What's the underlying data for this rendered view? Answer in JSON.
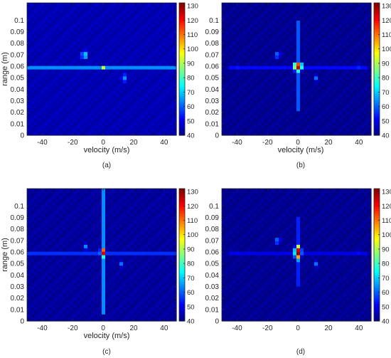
{
  "chart_data": [
    {
      "type": "heatmap",
      "panel_label": "(a)",
      "xlabel": "velocity (m/s)",
      "ylabel": "range (m)",
      "xlim": [
        -50,
        48
      ],
      "ylim": [
        0,
        0.115
      ],
      "xticks": [
        -40,
        -20,
        0,
        20,
        40
      ],
      "yticks": [
        0,
        0.01,
        0.02,
        0.03,
        0.04,
        0.05,
        0.06,
        0.07,
        0.08,
        0.09,
        0.1
      ],
      "colorbar": {
        "min": 40,
        "max": 132,
        "ticks": [
          40,
          50,
          60,
          70,
          80,
          90,
          100,
          110,
          120,
          130
        ]
      },
      "peaks": [
        {
          "x": 0,
          "y": 0.06,
          "value": 130,
          "sx": 2,
          "sy": 0.0012
        },
        {
          "x": -12,
          "y": 0.07,
          "value": 72,
          "sx": 3,
          "sy": 0.005
        },
        {
          "x": 14,
          "y": 0.05,
          "value": 65,
          "sx": 3,
          "sy": 0.005
        }
      ],
      "ridges": [
        {
          "orientation": "horizontal",
          "at": 0.06,
          "value": 82,
          "width": 0.002,
          "from": -50,
          "to": 48
        }
      ],
      "background": 43
    },
    {
      "type": "heatmap",
      "panel_label": "(b)",
      "xlabel": "velocity (m/s)",
      "ylabel": "",
      "xlim": [
        -50,
        48
      ],
      "ylim": [
        0,
        0.115
      ],
      "xticks": [
        -40,
        -20,
        0,
        20,
        40
      ],
      "yticks": [
        0,
        0.01,
        0.02,
        0.03,
        0.04,
        0.05,
        0.06,
        0.07,
        0.08,
        0.09,
        0.1
      ],
      "colorbar": {
        "min": 40,
        "max": 132,
        "ticks": [
          40,
          50,
          60,
          70,
          80,
          90,
          100,
          110,
          120,
          130
        ]
      },
      "peaks": [
        {
          "x": 0,
          "y": 0.06,
          "value": 130,
          "sx": 2.5,
          "sy": 0.004
        },
        {
          "x": -13,
          "y": 0.07,
          "value": 68,
          "sx": 2,
          "sy": 0.004
        },
        {
          "x": 12,
          "y": 0.05,
          "value": 62,
          "sx": 2,
          "sy": 0.004
        },
        {
          "x": -40,
          "y": 0.06,
          "value": 58,
          "sx": 2,
          "sy": 0.003
        },
        {
          "x": 40,
          "y": 0.06,
          "value": 58,
          "sx": 2,
          "sy": 0.003
        }
      ],
      "ridges": [
        {
          "orientation": "horizontal",
          "at": 0.06,
          "value": 58,
          "width": 0.003,
          "from": -45,
          "to": 45
        },
        {
          "orientation": "vertical",
          "at": 0,
          "value": 60,
          "width": 1.5,
          "from": 0.02,
          "to": 0.1
        }
      ],
      "background": 40
    },
    {
      "type": "heatmap",
      "panel_label": "(c)",
      "xlabel": "velocity (m/s)",
      "ylabel": "range (m)",
      "xlim": [
        -50,
        48
      ],
      "ylim": [
        0,
        0.115
      ],
      "xticks": [
        -40,
        -20,
        0,
        20,
        40
      ],
      "yticks": [
        0,
        0.01,
        0.02,
        0.03,
        0.04,
        0.05,
        0.06,
        0.07,
        0.08,
        0.09,
        0.1
      ],
      "colorbar": {
        "min": 40,
        "max": 132,
        "ticks": [
          40,
          50,
          60,
          70,
          80,
          90,
          100,
          110,
          120,
          130
        ]
      },
      "peaks": [
        {
          "x": 0,
          "y": 0.06,
          "value": 128,
          "sx": 1.8,
          "sy": 0.004
        },
        {
          "x": -12,
          "y": 0.065,
          "value": 66,
          "sx": 2,
          "sy": 0.004
        },
        {
          "x": 12,
          "y": 0.05,
          "value": 62,
          "sx": 2,
          "sy": 0.004
        }
      ],
      "ridges": [
        {
          "orientation": "horizontal",
          "at": 0.06,
          "value": 62,
          "width": 0.003,
          "from": -50,
          "to": 48
        },
        {
          "orientation": "vertical",
          "at": 0,
          "value": 65,
          "width": 1.5,
          "from": 0.005,
          "to": 0.115
        }
      ],
      "background": 41
    },
    {
      "type": "heatmap",
      "panel_label": "(d)",
      "xlabel": "",
      "ylabel": "",
      "xlim": [
        -50,
        48
      ],
      "ylim": [
        0,
        0.115
      ],
      "xticks": [
        -40,
        -20,
        0,
        20,
        40
      ],
      "yticks": [
        0,
        0.01,
        0.02,
        0.03,
        0.04,
        0.05,
        0.06,
        0.07,
        0.08,
        0.09,
        0.1
      ],
      "colorbar": {
        "min": 40,
        "max": 132,
        "ticks": [
          40,
          50,
          60,
          70,
          80,
          90,
          100,
          110,
          120,
          130
        ]
      },
      "peaks": [
        {
          "x": 0,
          "y": 0.06,
          "value": 132,
          "sx": 2,
          "sy": 0.006
        },
        {
          "x": -13,
          "y": 0.07,
          "value": 68,
          "sx": 2,
          "sy": 0.004
        },
        {
          "x": 12,
          "y": 0.05,
          "value": 62,
          "sx": 2,
          "sy": 0.004
        },
        {
          "x": -40,
          "y": 0.06,
          "value": 55,
          "sx": 2,
          "sy": 0.003
        },
        {
          "x": 40,
          "y": 0.06,
          "value": 55,
          "sx": 2,
          "sy": 0.003
        }
      ],
      "ridges": [
        {
          "orientation": "horizontal",
          "at": 0.06,
          "value": 55,
          "width": 0.003,
          "from": -45,
          "to": 45
        },
        {
          "orientation": "vertical",
          "at": 0,
          "value": 55,
          "width": 1.5,
          "from": 0.03,
          "to": 0.09
        }
      ],
      "background": 40
    }
  ]
}
